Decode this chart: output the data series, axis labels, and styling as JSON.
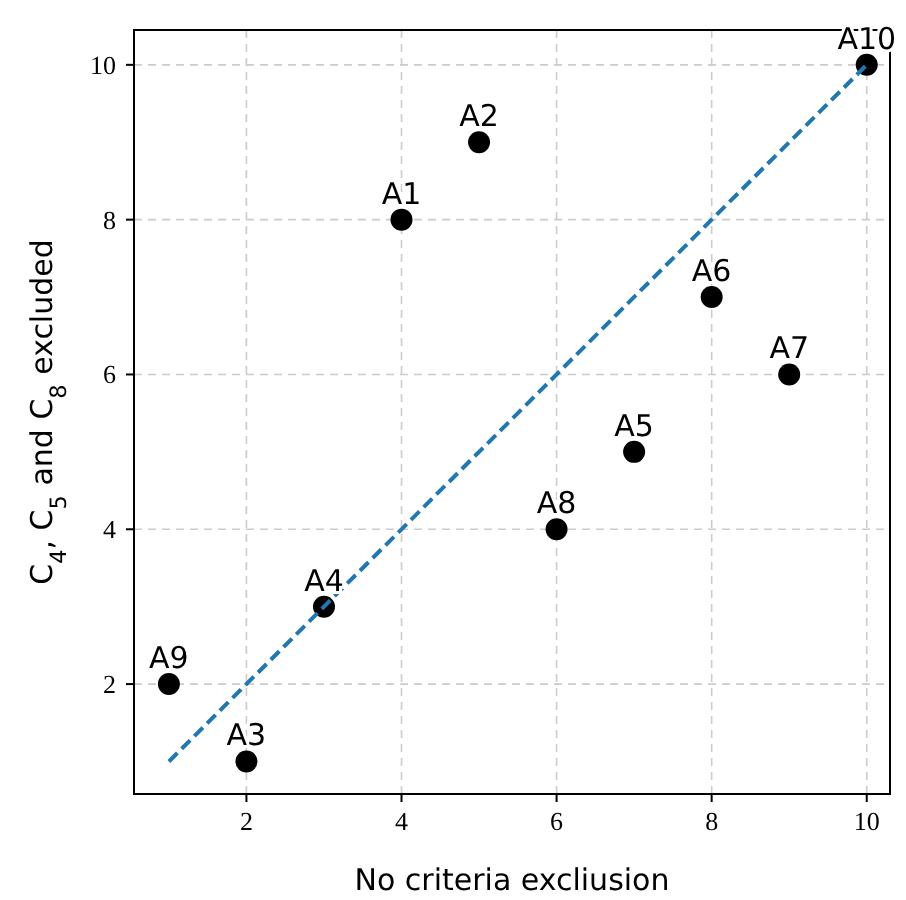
{
  "chart_data": {
    "type": "scatter",
    "xlabel": "No criteria excliusion",
    "ylabel": "C$_{4}$, C$_{5}$ and C$_{8}$ excluded",
    "xlim": [
      0.55,
      10.3
    ],
    "ylim": [
      0.58,
      10.45
    ],
    "xticks": [
      2,
      4,
      6,
      8,
      10
    ],
    "yticks": [
      2,
      4,
      6,
      8,
      10
    ],
    "grid": true,
    "marker": "circle",
    "series": [
      {
        "color": "#000000",
        "x": [
          4,
          5,
          2,
          3,
          7,
          8,
          9,
          6,
          1,
          10
        ],
        "values": [
          8,
          9,
          1,
          3,
          5,
          7,
          6,
          4,
          2,
          10
        ]
      },
      {
        "type": "line",
        "color": "#1f77b4",
        "line_style": "dashed",
        "marker": "none",
        "x": [
          1,
          10
        ],
        "values": [
          1,
          10
        ]
      }
    ],
    "annotations": [
      {
        "text": "A1",
        "x": 4,
        "y": 8
      },
      {
        "text": "A2",
        "x": 5,
        "y": 9
      },
      {
        "text": "A3",
        "x": 2,
        "y": 1
      },
      {
        "text": "A4",
        "x": 3,
        "y": 3
      },
      {
        "text": "A5",
        "x": 7,
        "y": 5
      },
      {
        "text": "A6",
        "x": 8,
        "y": 7
      },
      {
        "text": "A7",
        "x": 9,
        "y": 6
      },
      {
        "text": "A8",
        "x": 6,
        "y": 4
      },
      {
        "text": "A9",
        "x": 1,
        "y": 2
      },
      {
        "text": "A10",
        "x": 10,
        "y": 10
      }
    ]
  }
}
